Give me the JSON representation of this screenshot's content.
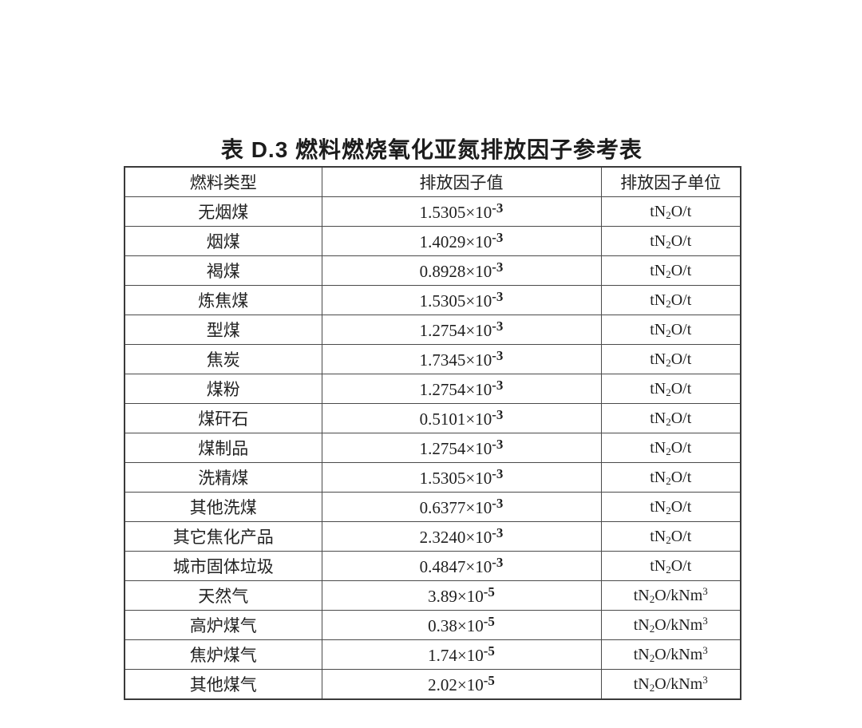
{
  "page": {
    "background": "#ffffff",
    "text_color": "#1f1f1f",
    "border_color": "#4a4a4a"
  },
  "title": "表 D.3 燃料燃烧氧化亚氮排放因子参考表",
  "table": {
    "headers": {
      "fuel_type": "燃料类型",
      "factor_value": "排放因子值",
      "factor_unit": "排放因子单位"
    },
    "rows": [
      {
        "fuel": "无烟煤",
        "value_base": "1.5305×10",
        "value_exp": "-3",
        "unit_pre": "tN",
        "unit_sub": "2",
        "unit_post": "O/t",
        "unit_sup": ""
      },
      {
        "fuel": "烟煤",
        "value_base": "1.4029×10",
        "value_exp": "-3",
        "unit_pre": "tN",
        "unit_sub": "2",
        "unit_post": "O/t",
        "unit_sup": ""
      },
      {
        "fuel": "褐煤",
        "value_base": "0.8928×10",
        "value_exp": "-3",
        "unit_pre": "tN",
        "unit_sub": "2",
        "unit_post": "O/t",
        "unit_sup": ""
      },
      {
        "fuel": "炼焦煤",
        "value_base": "1.5305×10",
        "value_exp": "-3",
        "unit_pre": "tN",
        "unit_sub": "2",
        "unit_post": "O/t",
        "unit_sup": ""
      },
      {
        "fuel": "型煤",
        "value_base": "1.2754×10",
        "value_exp": "-3",
        "unit_pre": "tN",
        "unit_sub": "2",
        "unit_post": "O/t",
        "unit_sup": ""
      },
      {
        "fuel": "焦炭",
        "value_base": "1.7345×10",
        "value_exp": "-3",
        "unit_pre": "tN",
        "unit_sub": "2",
        "unit_post": "O/t",
        "unit_sup": ""
      },
      {
        "fuel": "煤粉",
        "value_base": "1.2754×10",
        "value_exp": "-3",
        "unit_pre": "tN",
        "unit_sub": "2",
        "unit_post": "O/t",
        "unit_sup": ""
      },
      {
        "fuel": "煤矸石",
        "value_base": "0.5101×10",
        "value_exp": "-3",
        "unit_pre": "tN",
        "unit_sub": "2",
        "unit_post": "O/t",
        "unit_sup": ""
      },
      {
        "fuel": "煤制品",
        "value_base": "1.2754×10",
        "value_exp": "-3",
        "unit_pre": "tN",
        "unit_sub": "2",
        "unit_post": "O/t",
        "unit_sup": ""
      },
      {
        "fuel": "洗精煤",
        "value_base": "1.5305×10",
        "value_exp": "-3",
        "unit_pre": "tN",
        "unit_sub": "2",
        "unit_post": "O/t",
        "unit_sup": ""
      },
      {
        "fuel": "其他洗煤",
        "value_base": "0.6377×10",
        "value_exp": "-3",
        "unit_pre": "tN",
        "unit_sub": "2",
        "unit_post": "O/t",
        "unit_sup": ""
      },
      {
        "fuel": "其它焦化产品",
        "value_base": "2.3240×10",
        "value_exp": "-3",
        "unit_pre": "tN",
        "unit_sub": "2",
        "unit_post": "O/t",
        "unit_sup": ""
      },
      {
        "fuel": "城市固体垃圾",
        "value_base": "0.4847×10",
        "value_exp": "-3",
        "unit_pre": "tN",
        "unit_sub": "2",
        "unit_post": "O/t",
        "unit_sup": ""
      },
      {
        "fuel": "天然气",
        "value_base": "3.89×10",
        "value_exp": "-5",
        "unit_pre": "tN",
        "unit_sub": "2",
        "unit_post": "O/kNm",
        "unit_sup": "3"
      },
      {
        "fuel": "高炉煤气",
        "value_base": "0.38×10",
        "value_exp": "-5",
        "unit_pre": "tN",
        "unit_sub": "2",
        "unit_post": "O/kNm",
        "unit_sup": "3"
      },
      {
        "fuel": "焦炉煤气",
        "value_base": "1.74×10",
        "value_exp": "-5",
        "unit_pre": "tN",
        "unit_sub": "2",
        "unit_post": "O/kNm",
        "unit_sup": "3"
      },
      {
        "fuel": "其他煤气",
        "value_base": "2.02×10",
        "value_exp": "-5",
        "unit_pre": "tN",
        "unit_sub": "2",
        "unit_post": "O/kNm",
        "unit_sup": "3"
      }
    ]
  }
}
